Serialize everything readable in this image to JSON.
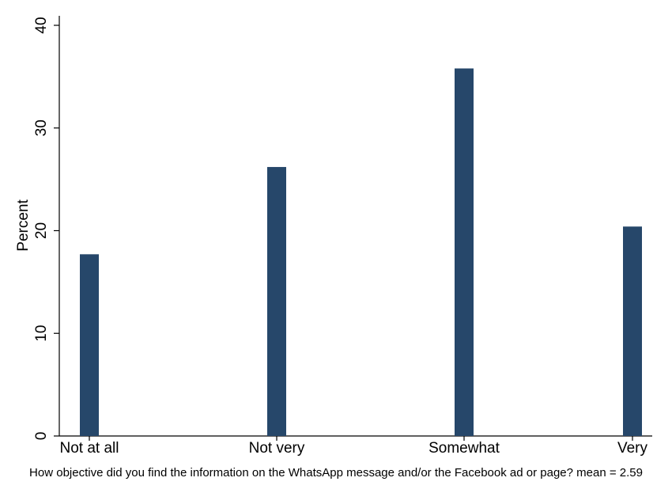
{
  "chart_data": {
    "type": "bar",
    "categories": [
      "Not at all",
      "Not very",
      "Somewhat",
      "Very"
    ],
    "values": [
      17.7,
      26.2,
      35.8,
      20.4
    ],
    "ylabel": "Percent",
    "xlabel": "How objective did you find the information on the WhatsApp message and/or the Facebook ad or page? mean = 2.59",
    "ylim": [
      0,
      40
    ],
    "yticks": [
      0,
      10,
      20,
      30,
      40
    ],
    "bar_color": "#26476a",
    "grid": false
  }
}
